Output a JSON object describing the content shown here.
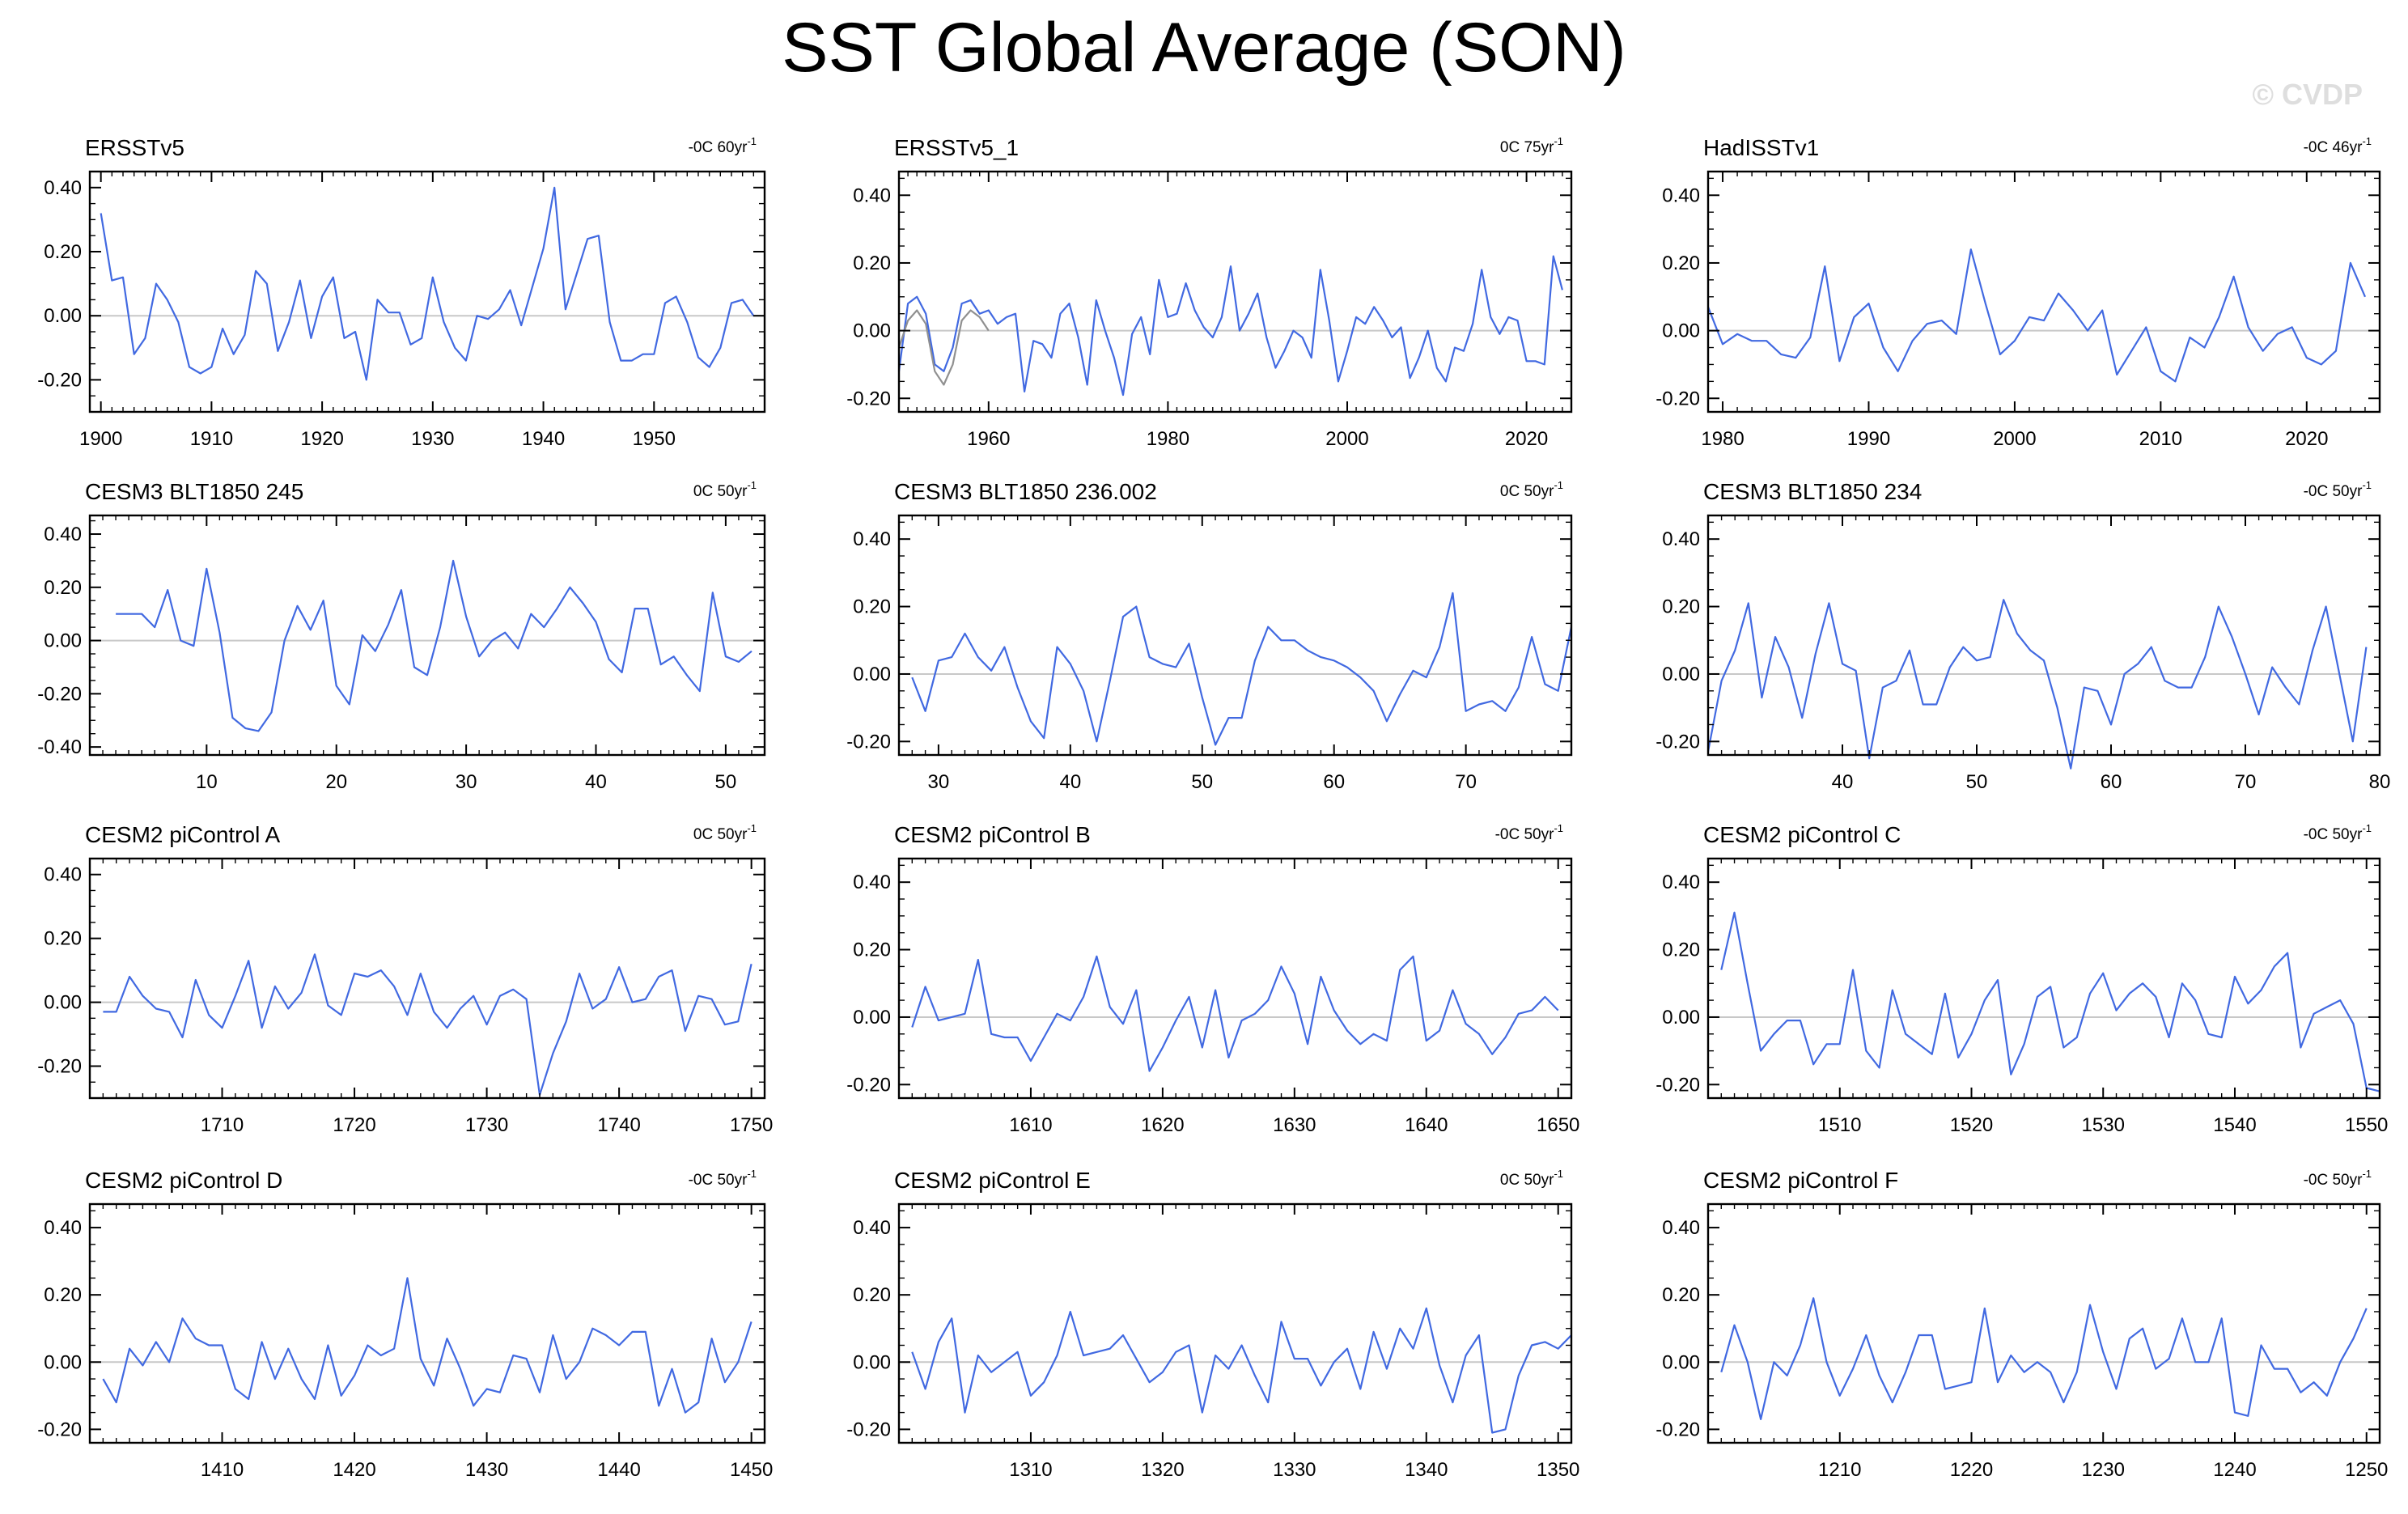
{
  "title": "SST Global Average (SON)",
  "watermark": "© CVDP",
  "colors": {
    "line": "#4169e1",
    "secondary": "#909090",
    "zero": "#c8c8c8",
    "axis": "#000000"
  },
  "chart_data": [
    {
      "type": "line",
      "title": "ERSSTv5",
      "trend": "-0C 60yr",
      "xlim": [
        1899,
        1960
      ],
      "ylim": [
        -0.3,
        0.45
      ],
      "xticks": [
        1900,
        1910,
        1920,
        1930,
        1940,
        1950
      ],
      "yticks": [
        -0.2,
        0.0,
        0.2,
        0.4
      ],
      "series": [
        {
          "x0": 1900,
          "values": [
            0.32,
            0.11,
            0.12,
            -0.12,
            -0.07,
            0.1,
            0.05,
            -0.02,
            -0.16,
            -0.18,
            -0.16,
            -0.04,
            -0.12,
            -0.06,
            0.14,
            0.1,
            -0.11,
            -0.02,
            0.11,
            -0.07,
            0.06,
            0.12,
            -0.07,
            -0.05,
            -0.2,
            0.05,
            0.01,
            0.01,
            -0.09,
            -0.07,
            0.12,
            -0.02,
            -0.1,
            -0.14,
            0.0,
            -0.01,
            0.02,
            0.08,
            -0.03,
            0.09,
            0.21,
            0.4,
            0.02,
            0.13,
            0.24,
            0.25,
            -0.02,
            -0.14,
            -0.14,
            -0.12,
            -0.12,
            0.04,
            0.06,
            -0.02,
            -0.13,
            -0.16,
            -0.1,
            0.04,
            0.05,
            0.0
          ]
        }
      ]
    },
    {
      "type": "line",
      "title": "ERSSTv5_1",
      "trend": "0C 75yr",
      "xlim": [
        1950,
        2025
      ],
      "ylim": [
        -0.24,
        0.47
      ],
      "xticks": [
        1960,
        1980,
        2000,
        2020
      ],
      "yticks": [
        -0.2,
        0.0,
        0.2,
        0.4
      ],
      "series": [
        {
          "x0": 1950,
          "values": [
            -0.12,
            0.08,
            0.1,
            0.05,
            -0.1,
            -0.12,
            -0.05,
            0.08,
            0.09,
            0.05,
            0.06,
            0.02,
            0.04,
            0.05,
            -0.18,
            -0.03,
            -0.04,
            -0.08,
            0.05,
            0.08,
            -0.02,
            -0.16,
            0.09,
            0.0,
            -0.08,
            -0.19,
            -0.01,
            0.04,
            -0.07,
            0.15,
            0.04,
            0.05,
            0.14,
            0.06,
            0.01,
            -0.02,
            0.04,
            0.19,
            0.0,
            0.05,
            0.11,
            -0.02,
            -0.11,
            -0.06,
            0.0,
            -0.02,
            -0.08,
            0.18,
            0.03,
            -0.15,
            -0.06,
            0.04,
            0.02,
            0.07,
            0.03,
            -0.02,
            0.01,
            -0.14,
            -0.08,
            0.0,
            -0.11,
            -0.15,
            -0.05,
            -0.06,
            0.02,
            0.18,
            0.04,
            -0.01,
            0.04,
            0.03,
            -0.09,
            -0.09,
            -0.1,
            0.22,
            0.12
          ]
        },
        {
          "x0": 1950,
          "secondary": true,
          "values": [
            -0.05,
            0.03,
            0.06,
            0.02,
            -0.12,
            -0.16,
            -0.1,
            0.03,
            0.06,
            0.04,
            0.0
          ]
        }
      ]
    },
    {
      "type": "line",
      "title": "HadISSTv1",
      "trend": "-0C 46yr",
      "xlim": [
        1979,
        2025
      ],
      "ylim": [
        -0.24,
        0.47
      ],
      "xticks": [
        1980,
        1990,
        2000,
        2010,
        2020
      ],
      "yticks": [
        -0.2,
        0.0,
        0.2,
        0.4
      ],
      "series": [
        {
          "x0": 1979,
          "values": [
            0.07,
            -0.04,
            -0.01,
            -0.03,
            -0.03,
            -0.07,
            -0.08,
            -0.02,
            0.19,
            -0.09,
            0.04,
            0.08,
            -0.05,
            -0.12,
            -0.03,
            0.02,
            0.03,
            -0.01,
            0.24,
            0.08,
            -0.07,
            -0.03,
            0.04,
            0.03,
            0.11,
            0.06,
            0.0,
            0.06,
            -0.13,
            -0.06,
            0.01,
            -0.12,
            -0.15,
            -0.02,
            -0.05,
            0.04,
            0.16,
            0.01,
            -0.06,
            -0.01,
            0.01,
            -0.08,
            -0.1,
            -0.06,
            0.2,
            0.1
          ]
        }
      ]
    },
    {
      "type": "line",
      "title": "CESM3 BLT1850 245",
      "trend": "0C 50yr",
      "xlim": [
        1,
        53
      ],
      "ylim": [
        -0.43,
        0.47
      ],
      "xticks": [
        10,
        20,
        30,
        40,
        50
      ],
      "yticks": [
        -0.4,
        -0.2,
        0.0,
        0.2,
        0.4
      ],
      "series": [
        {
          "x0": 3,
          "values": [
            0.1,
            0.1,
            0.1,
            0.05,
            0.19,
            0.0,
            -0.02,
            0.27,
            0.03,
            -0.29,
            -0.33,
            -0.34,
            -0.27,
            0.0,
            0.13,
            0.04,
            0.15,
            -0.17,
            -0.24,
            0.02,
            -0.04,
            0.06,
            0.19,
            -0.1,
            -0.13,
            0.05,
            0.3,
            0.09,
            -0.06,
            0.0,
            0.03,
            -0.03,
            0.1,
            0.05,
            0.12,
            0.2,
            0.14,
            0.07,
            -0.07,
            -0.12,
            0.12,
            0.12,
            -0.09,
            -0.06,
            -0.13,
            -0.19,
            0.18,
            -0.06,
            -0.08,
            -0.04
          ]
        }
      ]
    },
    {
      "type": "line",
      "title": "CESM3 BLT1850 236.002",
      "trend": "0C 50yr",
      "xlim": [
        27,
        78
      ],
      "ylim": [
        -0.24,
        0.47
      ],
      "xticks": [
        30,
        40,
        50,
        60,
        70
      ],
      "yticks": [
        -0.2,
        0.0,
        0.2,
        0.4
      ],
      "series": [
        {
          "x0": 28,
          "values": [
            -0.01,
            -0.11,
            0.04,
            0.05,
            0.12,
            0.05,
            0.01,
            0.08,
            -0.04,
            -0.14,
            -0.19,
            0.08,
            0.03,
            -0.05,
            -0.2,
            -0.02,
            0.17,
            0.2,
            0.05,
            0.03,
            0.02,
            0.09,
            -0.07,
            -0.21,
            -0.13,
            -0.13,
            0.04,
            0.14,
            0.1,
            0.1,
            0.07,
            0.05,
            0.04,
            0.02,
            -0.01,
            -0.05,
            -0.14,
            -0.06,
            0.01,
            -0.01,
            0.08,
            0.24,
            -0.11,
            -0.09,
            -0.08,
            -0.11,
            -0.04,
            0.11,
            -0.03,
            -0.05,
            0.14
          ]
        }
      ]
    },
    {
      "type": "line",
      "title": "CESM3 BLT1850 234",
      "trend": "-0C 50yr",
      "xlim": [
        30,
        80
      ],
      "ylim": [
        -0.24,
        0.47
      ],
      "xticks": [
        40,
        50,
        60,
        70,
        80
      ],
      "yticks": [
        -0.2,
        0.0,
        0.2,
        0.4
      ],
      "series": [
        {
          "x0": 30,
          "values": [
            -0.23,
            -0.02,
            0.07,
            0.21,
            -0.07,
            0.11,
            0.02,
            -0.13,
            0.06,
            0.21,
            0.03,
            0.01,
            -0.25,
            -0.04,
            -0.02,
            0.07,
            -0.09,
            -0.09,
            0.02,
            0.08,
            0.04,
            0.05,
            0.22,
            0.12,
            0.07,
            0.04,
            -0.1,
            -0.28,
            -0.04,
            -0.05,
            -0.15,
            0.0,
            0.03,
            0.08,
            -0.02,
            -0.04,
            -0.04,
            0.05,
            0.2,
            0.11,
            0.0,
            -0.12,
            0.02,
            -0.04,
            -0.09,
            0.07,
            0.2,
            0.0,
            -0.2,
            0.08
          ]
        }
      ]
    },
    {
      "type": "line",
      "title": "CESM2 piControl A",
      "trend": "0C 50yr",
      "xlim": [
        1700,
        1751
      ],
      "ylim": [
        -0.3,
        0.45
      ],
      "xticks": [
        1710,
        1720,
        1730,
        1740,
        1750
      ],
      "yticks": [
        -0.2,
        0.0,
        0.2,
        0.4
      ],
      "series": [
        {
          "x0": 1701,
          "values": [
            -0.03,
            -0.03,
            0.08,
            0.02,
            -0.02,
            -0.03,
            -0.11,
            0.07,
            -0.04,
            -0.08,
            0.02,
            0.13,
            -0.08,
            0.05,
            -0.02,
            0.03,
            0.15,
            -0.01,
            -0.04,
            0.09,
            0.08,
            0.1,
            0.05,
            -0.04,
            0.09,
            -0.03,
            -0.08,
            -0.02,
            0.02,
            -0.07,
            0.02,
            0.04,
            0.01,
            -0.29,
            -0.16,
            -0.06,
            0.09,
            -0.02,
            0.01,
            0.11,
            0.0,
            0.01,
            0.08,
            0.1,
            -0.09,
            0.02,
            0.01,
            -0.07,
            -0.06,
            0.12
          ]
        }
      ]
    },
    {
      "type": "line",
      "title": "CESM2 piControl B",
      "trend": "-0C 50yr",
      "xlim": [
        1600,
        1651
      ],
      "ylim": [
        -0.24,
        0.47
      ],
      "xticks": [
        1610,
        1620,
        1630,
        1640,
        1650
      ],
      "yticks": [
        -0.2,
        0.0,
        0.2,
        0.4
      ],
      "series": [
        {
          "x0": 1601,
          "values": [
            -0.03,
            0.09,
            -0.01,
            0.0,
            0.01,
            0.17,
            -0.05,
            -0.06,
            -0.06,
            -0.13,
            -0.06,
            0.01,
            -0.01,
            0.06,
            0.18,
            0.03,
            -0.02,
            0.08,
            -0.16,
            -0.09,
            -0.01,
            0.06,
            -0.09,
            0.08,
            -0.12,
            -0.01,
            0.01,
            0.05,
            0.15,
            0.07,
            -0.08,
            0.12,
            0.02,
            -0.04,
            -0.08,
            -0.05,
            -0.07,
            0.14,
            0.18,
            -0.07,
            -0.04,
            0.08,
            -0.02,
            -0.05,
            -0.11,
            -0.06,
            0.01,
            0.02,
            0.06,
            0.02
          ]
        }
      ]
    },
    {
      "type": "line",
      "title": "CESM2 piControl C",
      "trend": "-0C 50yr",
      "xlim": [
        1500,
        1551
      ],
      "ylim": [
        -0.24,
        0.47
      ],
      "xticks": [
        1510,
        1520,
        1530,
        1540,
        1550
      ],
      "yticks": [
        -0.2,
        0.0,
        0.2,
        0.4
      ],
      "series": [
        {
          "x0": 1501,
          "values": [
            0.14,
            0.31,
            0.1,
            -0.1,
            -0.05,
            -0.01,
            -0.01,
            -0.14,
            -0.08,
            -0.08,
            0.14,
            -0.1,
            -0.15,
            0.08,
            -0.05,
            -0.08,
            -0.11,
            0.07,
            -0.12,
            -0.05,
            0.05,
            0.11,
            -0.17,
            -0.08,
            0.06,
            0.09,
            -0.09,
            -0.06,
            0.07,
            0.13,
            0.02,
            0.07,
            0.1,
            0.06,
            -0.06,
            0.1,
            0.05,
            -0.05,
            -0.06,
            0.12,
            0.04,
            0.08,
            0.15,
            0.19,
            -0.09,
            0.01,
            0.03,
            0.05,
            -0.02,
            -0.21,
            -0.22
          ]
        }
      ]
    },
    {
      "type": "line",
      "title": "CESM2 piControl D",
      "trend": "-0C 50yr",
      "xlim": [
        1400,
        1451
      ],
      "ylim": [
        -0.24,
        0.47
      ],
      "xticks": [
        1410,
        1420,
        1430,
        1440,
        1450
      ],
      "yticks": [
        -0.2,
        0.0,
        0.2,
        0.4
      ],
      "series": [
        {
          "x0": 1401,
          "values": [
            -0.05,
            -0.12,
            0.04,
            -0.01,
            0.06,
            0.0,
            0.13,
            0.07,
            0.05,
            0.05,
            -0.08,
            -0.11,
            0.06,
            -0.05,
            0.04,
            -0.05,
            -0.11,
            0.05,
            -0.1,
            -0.04,
            0.05,
            0.02,
            0.04,
            0.25,
            0.01,
            -0.07,
            0.07,
            -0.02,
            -0.13,
            -0.08,
            -0.09,
            0.02,
            0.01,
            -0.09,
            0.08,
            -0.05,
            0.0,
            0.1,
            0.08,
            0.05,
            0.09,
            0.09,
            -0.13,
            -0.02,
            -0.15,
            -0.12,
            0.07,
            -0.06,
            0.0,
            0.12
          ]
        }
      ]
    },
    {
      "type": "line",
      "title": "CESM2 piControl E",
      "trend": "0C 50yr",
      "xlim": [
        1300,
        1351
      ],
      "ylim": [
        -0.24,
        0.47
      ],
      "xticks": [
        1310,
        1320,
        1330,
        1340,
        1350
      ],
      "yticks": [
        -0.2,
        0.0,
        0.2,
        0.4
      ],
      "series": [
        {
          "x0": 1301,
          "values": [
            0.03,
            -0.08,
            0.06,
            0.13,
            -0.15,
            0.02,
            -0.03,
            0.0,
            0.03,
            -0.1,
            -0.06,
            0.02,
            0.15,
            0.02,
            0.03,
            0.04,
            0.08,
            0.01,
            -0.06,
            -0.03,
            0.03,
            0.05,
            -0.15,
            0.02,
            -0.02,
            0.05,
            -0.04,
            -0.12,
            0.12,
            0.01,
            0.01,
            -0.07,
            0.0,
            0.04,
            -0.08,
            0.09,
            -0.02,
            0.1,
            0.04,
            0.16,
            -0.01,
            -0.12,
            0.02,
            0.08,
            -0.21,
            -0.2,
            -0.04,
            0.05,
            0.06,
            0.04,
            0.08
          ]
        }
      ]
    },
    {
      "type": "line",
      "title": "CESM2 piControl F",
      "trend": "-0C 50yr",
      "xlim": [
        1200,
        1251
      ],
      "ylim": [
        -0.24,
        0.47
      ],
      "xticks": [
        1210,
        1220,
        1230,
        1240,
        1250
      ],
      "yticks": [
        -0.2,
        0.0,
        0.2,
        0.4
      ],
      "series": [
        {
          "x0": 1201,
          "values": [
            -0.03,
            0.11,
            0.0,
            -0.17,
            0.0,
            -0.04,
            0.05,
            0.19,
            0.0,
            -0.1,
            -0.02,
            0.08,
            -0.04,
            -0.12,
            -0.03,
            0.08,
            0.08,
            -0.08,
            -0.07,
            -0.06,
            0.16,
            -0.06,
            0.02,
            -0.03,
            0.0,
            -0.03,
            -0.12,
            -0.03,
            0.17,
            0.03,
            -0.08,
            0.07,
            0.1,
            -0.02,
            0.01,
            0.13,
            0.0,
            0.0,
            0.13,
            -0.15,
            -0.16,
            0.05,
            -0.02,
            -0.02,
            -0.09,
            -0.06,
            -0.1,
            0.0,
            0.07,
            0.16
          ]
        }
      ]
    }
  ]
}
